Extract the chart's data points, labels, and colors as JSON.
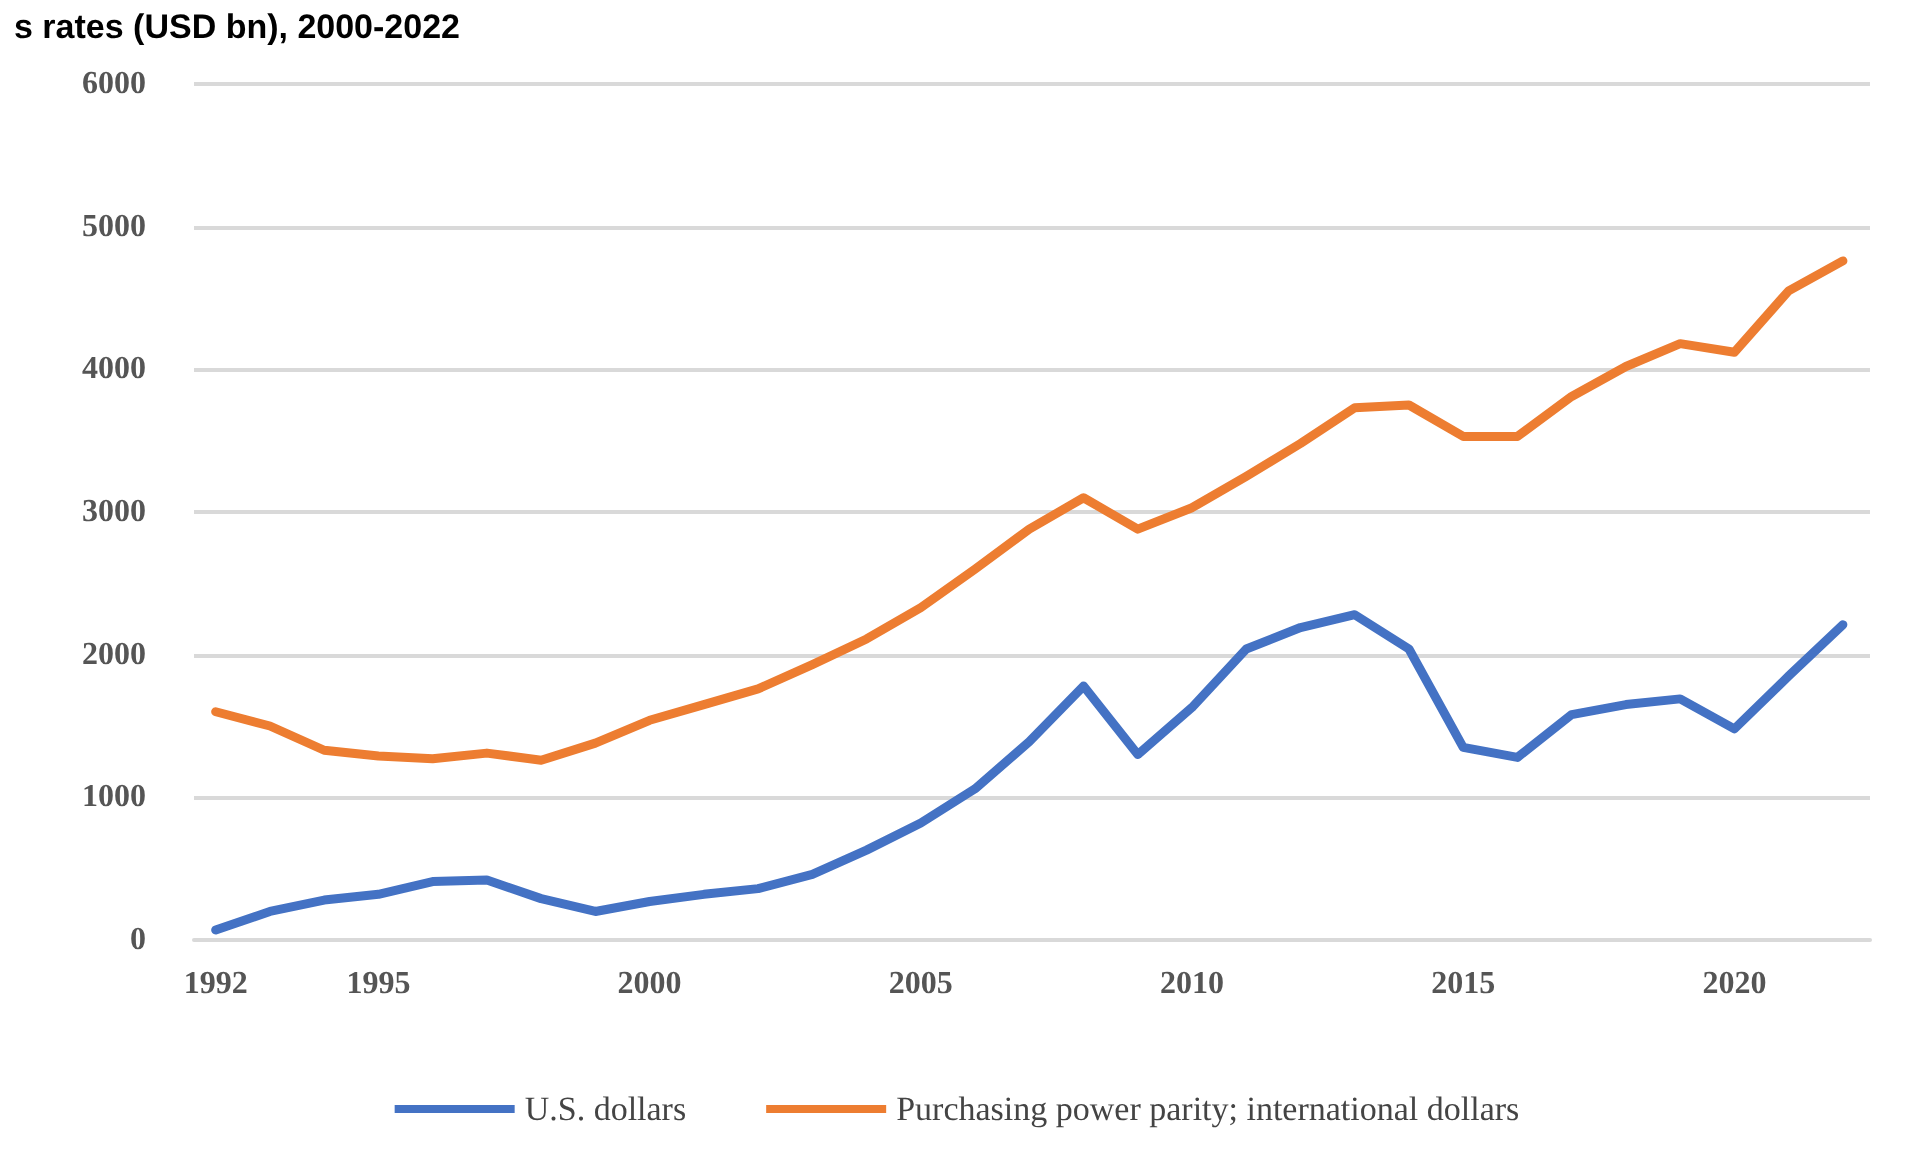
{
  "chart_data": {
    "type": "line",
    "title": "s rates (USD bn), 2000-2022",
    "x": [
      1992,
      1993,
      1994,
      1995,
      1996,
      1997,
      1998,
      1999,
      2000,
      2001,
      2002,
      2003,
      2004,
      2005,
      2006,
      2007,
      2008,
      2009,
      2010,
      2011,
      2012,
      2013,
      2014,
      2015,
      2016,
      2017,
      2018,
      2019,
      2020,
      2021,
      2022
    ],
    "series": [
      {
        "name": "U.S. dollars",
        "color": "#4472c4",
        "values": [
          70,
          200,
          280,
          320,
          410,
          420,
          290,
          200,
          270,
          320,
          360,
          460,
          630,
          820,
          1060,
          1390,
          1780,
          1300,
          1630,
          2040,
          2190,
          2280,
          2040,
          1350,
          1280,
          1580,
          1650,
          1690,
          1480,
          1850,
          2210
        ]
      },
      {
        "name": "Purchasing power parity; international dollars",
        "color": "#ed7d31",
        "values": [
          1600,
          1500,
          1330,
          1290,
          1270,
          1310,
          1260,
          1380,
          1540,
          1650,
          1760,
          1930,
          2110,
          2330,
          2600,
          2880,
          3100,
          2880,
          3030,
          3250,
          3480,
          3730,
          3750,
          3530,
          3530,
          3810,
          4020,
          4180,
          4120,
          4550,
          4760
        ]
      }
    ],
    "xlim": [
      1991.6,
      2022.5
    ],
    "xticks": [
      1992,
      1995,
      2000,
      2005,
      2010,
      2015,
      2020
    ],
    "ylim": [
      0,
      6000
    ],
    "yticks": [
      0,
      1000,
      2000,
      3000,
      4000,
      5000,
      6000
    ],
    "grid": "y",
    "legend": "bottom",
    "marker": "none",
    "line_style": "solid"
  }
}
